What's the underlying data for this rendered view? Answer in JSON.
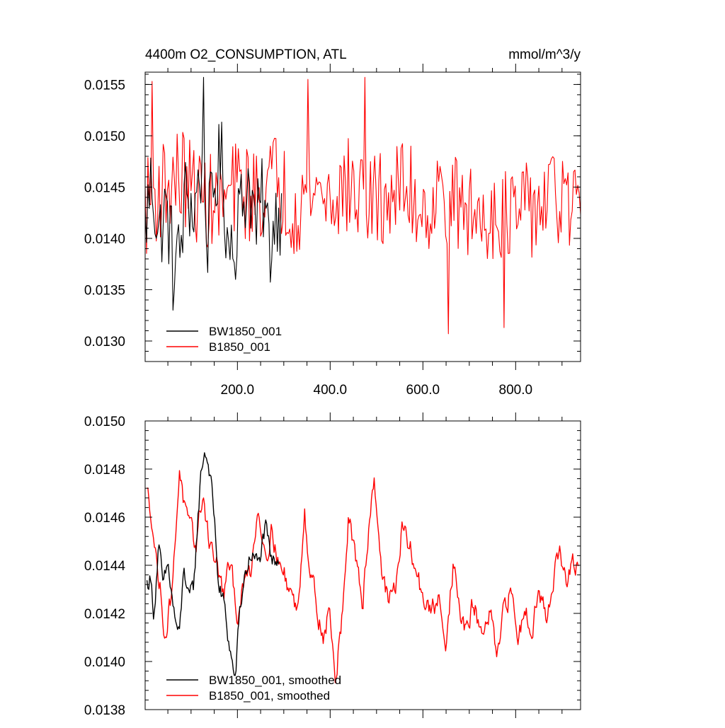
{
  "chart_data": [
    {
      "type": "line",
      "title": "4400m O2_CONSUMPTION, ATL",
      "units": "mmol/m^3/y",
      "xlim": [
        1,
        940
      ],
      "ylim": [
        0.0128,
        0.01562
      ],
      "yticks": [
        "0.0130",
        "0.0135",
        "0.0140",
        "0.0145",
        "0.0150",
        "0.0155"
      ],
      "ytick_values": [
        0.013,
        0.0135,
        0.014,
        0.0145,
        0.015,
        0.0155
      ],
      "xticks": [
        "200.0",
        "400.0",
        "600.0",
        "800.0"
      ],
      "xtick_values": [
        200,
        400,
        600,
        800
      ],
      "legend_position": "bottom-left",
      "series": [
        {
          "name": "BW1850_001",
          "color": "#000000",
          "x": [
            1,
            15,
            30,
            45,
            60,
            75,
            90,
            105,
            120,
            135,
            150,
            165,
            180,
            195,
            210,
            225,
            240,
            255,
            270,
            285,
            295
          ],
          "values": [
            0.0141,
            0.0146,
            0.014,
            0.0143,
            0.0139,
            0.0138,
            0.0145,
            0.0142,
            0.0147,
            0.014,
            0.0145,
            0.0148,
            0.0139,
            0.0142,
            0.0143,
            0.0146,
            0.0141,
            0.0144,
            0.0139,
            0.0143,
            0.0142
          ],
          "extremes": [
            [
              60,
              0.0133
            ],
            [
              125,
              0.01557
            ],
            [
              195,
              0.0136
            ]
          ]
        },
        {
          "name": "B1850_001",
          "color": "#ff0000",
          "x": [
            1,
            40,
            80,
            120,
            160,
            200,
            240,
            280,
            320,
            360,
            400,
            440,
            480,
            520,
            560,
            600,
            640,
            680,
            720,
            760,
            800,
            840,
            880,
            920,
            940
          ],
          "values": [
            0.0143,
            0.0145,
            0.0146,
            0.0144,
            0.0143,
            0.0145,
            0.0144,
            0.0146,
            0.0143,
            0.0145,
            0.0144,
            0.0145,
            0.0143,
            0.0144,
            0.0145,
            0.0143,
            0.0144,
            0.0143,
            0.0142,
            0.0143,
            0.0142,
            0.0143,
            0.0144,
            0.0143,
            0.0142
          ],
          "extremes": [
            [
              15,
              0.01553
            ],
            [
              350,
              0.01555
            ],
            [
              475,
              0.01557
            ],
            [
              655,
              0.01307
            ],
            [
              775,
              0.01313
            ]
          ]
        }
      ]
    },
    {
      "type": "line",
      "title": "",
      "xlim": [
        1,
        940
      ],
      "ylim": [
        0.0138,
        0.015
      ],
      "yticks": [
        "0.0138",
        "0.0140",
        "0.0142",
        "0.0144",
        "0.0146",
        "0.0148",
        "0.0150"
      ],
      "ytick_values": [
        0.0138,
        0.014,
        0.0142,
        0.0144,
        0.0146,
        0.0148,
        0.015
      ],
      "xtick_values": [
        200,
        400,
        600,
        800
      ],
      "legend_position": "bottom-left",
      "series": [
        {
          "name": "BW1850_001, smoothed",
          "color": "#000000",
          "x": [
            5,
            12,
            20,
            30,
            40,
            50,
            60,
            65,
            75,
            85,
            95,
            105,
            115,
            122,
            130,
            140,
            150,
            160,
            170,
            180,
            188,
            195,
            205,
            215,
            230,
            245,
            260,
            275,
            290
          ],
          "values": [
            0.01432,
            0.01435,
            0.0142,
            0.01448,
            0.0143,
            0.0144,
            0.01425,
            0.01418,
            0.0141,
            0.0144,
            0.01425,
            0.0143,
            0.0146,
            0.0148,
            0.01488,
            0.0148,
            0.0146,
            0.0143,
            0.01425,
            0.0141,
            0.014,
            0.01392,
            0.0142,
            0.01435,
            0.01445,
            0.0144,
            0.01455,
            0.0144,
            0.01445
          ]
        },
        {
          "name": "B1850_001, smoothed",
          "color": "#ff0000",
          "x": [
            5,
            15,
            25,
            35,
            45,
            55,
            65,
            75,
            85,
            95,
            110,
            125,
            140,
            155,
            170,
            185,
            200,
            215,
            230,
            245,
            260,
            275,
            290,
            310,
            330,
            345,
            355,
            370,
            385,
            400,
            410,
            425,
            440,
            455,
            470,
            480,
            495,
            510,
            525,
            540,
            555,
            575,
            595,
            615,
            635,
            650,
            665,
            680,
            695,
            710,
            725,
            745,
            760,
            775,
            790,
            805,
            820,
            835,
            850,
            865,
            880,
            895,
            910,
            925,
            935
          ],
          "values": [
            0.0147,
            0.01462,
            0.01442,
            0.01428,
            0.0141,
            0.01425,
            0.01445,
            0.01482,
            0.01465,
            0.01455,
            0.01448,
            0.0147,
            0.0145,
            0.0144,
            0.01428,
            0.0144,
            0.0142,
            0.01432,
            0.0144,
            0.01465,
            0.01445,
            0.01455,
            0.0144,
            0.01432,
            0.0142,
            0.01465,
            0.0144,
            0.01425,
            0.0141,
            0.01422,
            0.0139,
            0.01418,
            0.0146,
            0.0144,
            0.01425,
            0.0145,
            0.01478,
            0.0144,
            0.01425,
            0.0143,
            0.01455,
            0.01445,
            0.0143,
            0.0142,
            0.01425,
            0.0141,
            0.0144,
            0.0142,
            0.01412,
            0.01425,
            0.0141,
            0.0142,
            0.014,
            0.0142,
            0.0143,
            0.0141,
            0.01422,
            0.01415,
            0.0143,
            0.01418,
            0.01435,
            0.01445,
            0.01432,
            0.0144,
            0.01438
          ]
        }
      ]
    }
  ]
}
